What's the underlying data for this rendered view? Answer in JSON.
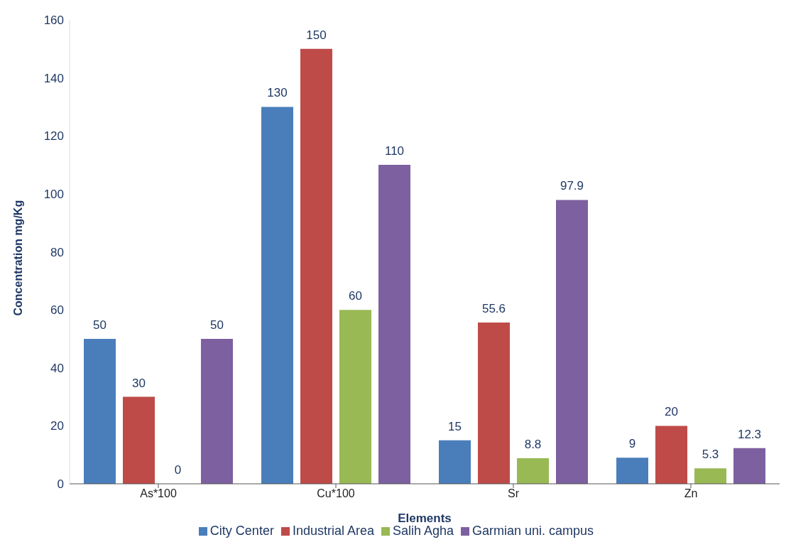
{
  "chart_data": {
    "type": "bar",
    "xlabel": "Elements",
    "ylabel": "Concentration mg/Kg",
    "categories": [
      "As*100",
      "Cu*100",
      "Sr",
      "Zn"
    ],
    "series": [
      {
        "name": "City Center",
        "color": "#4a7ebb",
        "values": [
          50,
          130,
          15,
          9
        ]
      },
      {
        "name": "Industrial Area",
        "color": "#be4b48",
        "values": [
          30,
          150,
          55.6,
          20
        ]
      },
      {
        "name": "Salih Agha",
        "color": "#98b954",
        "values": [
          0,
          60,
          8.8,
          5.3
        ]
      },
      {
        "name": "Garmian uni. campus",
        "color": "#7d60a0",
        "values": [
          50,
          110,
          97.9,
          12.3
        ]
      }
    ],
    "ylim": [
      0,
      160
    ],
    "yticks": [
      0,
      20,
      40,
      60,
      80,
      100,
      120,
      140,
      160
    ],
    "grid": false,
    "legend": "bottom",
    "data_labels": true
  }
}
